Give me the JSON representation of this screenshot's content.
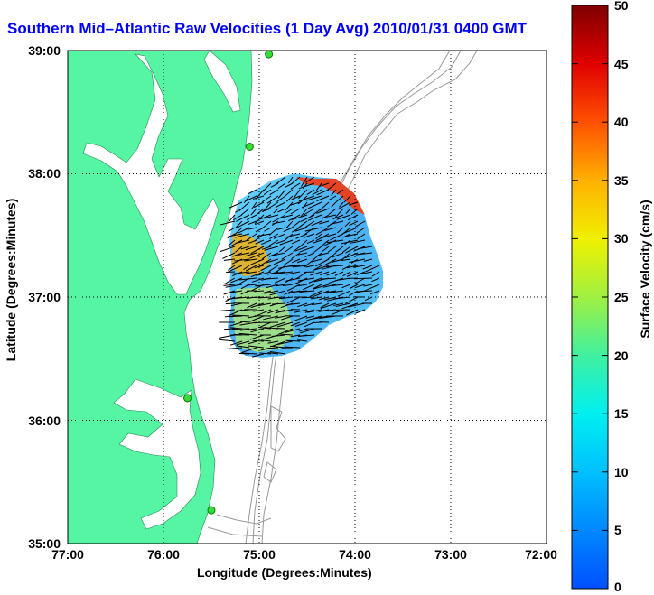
{
  "title": "Southern Mid–Atlantic Raw Velocities (1 Day Avg) 2010/01/31 0400 GMT",
  "xlabel": "Longitude (Degrees:Minutes)",
  "ylabel": "Latitude (Degrees:Minutes)",
  "colorbar_label": "Surface Velocity (cm/s)",
  "x_ticks": [
    "77:00",
    "76:00",
    "75:00",
    "74:00",
    "73:00",
    "72:00"
  ],
  "y_ticks": [
    "39:00",
    "38:00",
    "37:00",
    "36:00",
    "35:00"
  ],
  "colorbar_ticks": [
    "50",
    "45",
    "40",
    "35",
    "30",
    "25",
    "20",
    "15",
    "10",
    "5",
    "0"
  ],
  "colors": {
    "land": "#55f5a3",
    "title": "#0000ff",
    "bathymetry": "#999999",
    "vectors": "#000000",
    "station_marker": "#33dd33"
  },
  "chart_data": {
    "type": "map",
    "xlim": [
      -77.0,
      -72.0
    ],
    "ylim": [
      35.0,
      39.0
    ],
    "grid": true,
    "colormap": "jet",
    "clim": [
      0,
      50
    ],
    "stations": [
      {
        "lon": -74.9,
        "lat": 38.97
      },
      {
        "lon": -75.1,
        "lat": 38.22
      },
      {
        "lon": -75.75,
        "lat": 36.18
      },
      {
        "lon": -75.5,
        "lat": 35.27
      }
    ]
  }
}
